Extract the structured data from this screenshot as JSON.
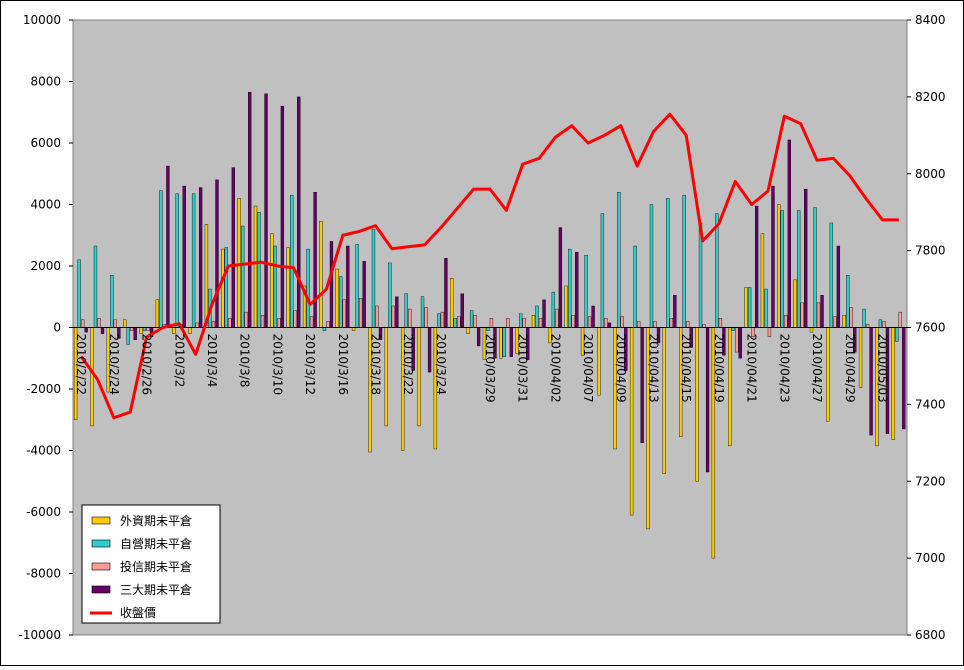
{
  "chart_data": {
    "type": "bar",
    "title": "",
    "xlabel": "",
    "ylabel": "",
    "y2label": "",
    "ylim": [
      -10000,
      10000
    ],
    "y2lim": [
      6800,
      8400
    ],
    "yticks": [
      "10000",
      "8000",
      "6000",
      "4000",
      "2000",
      "0",
      "-2000",
      "-4000",
      "-6000",
      "-8000",
      "-10000"
    ],
    "y2ticks": [
      "8400",
      "8200",
      "8000",
      "7800",
      "7600",
      "7400",
      "7200",
      "7000",
      "6800"
    ],
    "grid": false,
    "plot_background": "#c0c0c0",
    "legend_position": "bottom-left",
    "categories": [
      "2010/2/22",
      "2010/2/23",
      "2010/2/24",
      "2010/2/25",
      "2010/2/26",
      "2010/3/1",
      "2010/3/2",
      "2010/3/3",
      "2010/3/4",
      "2010/3/5",
      "2010/3/8",
      "2010/3/9",
      "2010/3/10",
      "2010/3/11",
      "2010/3/12",
      "2010/3/15",
      "2010/3/16",
      "2010/3/17",
      "2010/3/18",
      "2010/3/19",
      "2010/3/22",
      "2010/3/23",
      "2010/3/24",
      "2010/3/25",
      "2010/3/26",
      "2010/3/29",
      "2010/3/30",
      "2010/3/31",
      "2010/4/1",
      "2010/4/2",
      "2010/4/6",
      "2010/4/7",
      "2010/4/8",
      "2010/4/9",
      "2010/4/12",
      "2010/4/13",
      "2010/4/14",
      "2010/4/15",
      "2010/4/16",
      "2010/4/19",
      "2010/4/20",
      "2010/4/21",
      "2010/4/22",
      "2010/4/23",
      "2010/4/26",
      "2010/4/27",
      "2010/4/28",
      "2010/4/29",
      "2010/4/30",
      "2010/5/3",
      "2010/5/4"
    ],
    "x_tick_labels": [
      {
        "index": 0,
        "text": "2010/2/22"
      },
      {
        "index": 2,
        "text": "2010/2/24"
      },
      {
        "index": 4,
        "text": "2010/2/26"
      },
      {
        "index": 6,
        "text": "2010/3/2"
      },
      {
        "index": 8,
        "text": "2010/3/4"
      },
      {
        "index": 10,
        "text": "2010/3/8"
      },
      {
        "index": 12,
        "text": "2010/3/10"
      },
      {
        "index": 14,
        "text": "2010/3/12"
      },
      {
        "index": 16,
        "text": "2010/3/16"
      },
      {
        "index": 18,
        "text": "2010/3/18"
      },
      {
        "index": 20,
        "text": "2010/3/22"
      },
      {
        "index": 22,
        "text": "2010/3/24"
      },
      {
        "index": 25,
        "text": "2010/03/29"
      },
      {
        "index": 27,
        "text": "2010/03/31"
      },
      {
        "index": 29,
        "text": "2010/04/02"
      },
      {
        "index": 31,
        "text": "2010/04/07"
      },
      {
        "index": 33,
        "text": "2010/04/09"
      },
      {
        "index": 35,
        "text": "2010/04/13"
      },
      {
        "index": 37,
        "text": "2010/04/15"
      },
      {
        "index": 39,
        "text": "2010/04/19"
      },
      {
        "index": 41,
        "text": "2010/04/21"
      },
      {
        "index": 43,
        "text": "2010/04/23"
      },
      {
        "index": 45,
        "text": "2010/04/27"
      },
      {
        "index": 47,
        "text": "2010/04/29"
      },
      {
        "index": 49,
        "text": "2010/05/03"
      }
    ],
    "series": [
      {
        "name": "外資期未平倉",
        "type": "bar",
        "axis": "left",
        "color": "#ffcc00",
        "values": [
          -3000,
          -3200,
          -2100,
          250,
          -200,
          900,
          -200,
          -200,
          3350,
          2550,
          4200,
          3950,
          3050,
          2600,
          1350,
          3450,
          1900,
          -100,
          -4050,
          -3200,
          -4000,
          -3200,
          -3950,
          1600,
          -200,
          -1050,
          -1000,
          -850,
          400,
          -500,
          1350,
          -900,
          -2200,
          -3950,
          -6100,
          -6550,
          -4750,
          -3550,
          -5000,
          -7500,
          -3850,
          1300,
          3050,
          4000,
          1550,
          -150,
          -3050,
          400,
          -1950,
          -3850,
          -3650
        ]
      },
      {
        "name": "自營期未平倉",
        "type": "bar",
        "axis": "left",
        "color": "#33cccc",
        "values": [
          2200,
          2650,
          1700,
          -550,
          -100,
          4450,
          4350,
          4350,
          1250,
          2600,
          3300,
          3750,
          2650,
          4300,
          2550,
          -100,
          1650,
          2700,
          3200,
          2100,
          1100,
          1000,
          450,
          300,
          550,
          -100,
          -950,
          450,
          700,
          1150,
          2550,
          2350,
          3700,
          4400,
          2650,
          4000,
          4200,
          4300,
          3400,
          3700,
          -100,
          1300,
          1250,
          3800,
          3800,
          3900,
          3400,
          1700,
          600,
          250,
          -450
        ]
      },
      {
        "name": "投信期未平倉",
        "type": "bar",
        "axis": "left",
        "color": "#ff9999",
        "values": [
          250,
          300,
          250,
          -100,
          -100,
          100,
          100,
          150,
          200,
          300,
          500,
          400,
          300,
          550,
          350,
          200,
          900,
          950,
          700,
          700,
          600,
          650,
          500,
          350,
          400,
          300,
          300,
          300,
          300,
          600,
          400,
          350,
          300,
          350,
          200,
          200,
          300,
          200,
          100,
          300,
          -800,
          -300,
          -300,
          400,
          800,
          800,
          350,
          650,
          100,
          200,
          500
        ]
      },
      {
        "name": "三大期未平倉",
        "type": "bar",
        "axis": "left",
        "color": "#660066",
        "values": [
          -150,
          -200,
          -350,
          -400,
          -300,
          5250,
          4600,
          4550,
          4800,
          5200,
          7650,
          7600,
          7200,
          7500,
          4400,
          2800,
          2650,
          2150,
          -400,
          1000,
          -1400,
          -1450,
          2250,
          1100,
          -600,
          -1000,
          -950,
          -1050,
          900,
          3250,
          2450,
          700,
          150,
          -1400,
          -3750,
          -500,
          1050,
          -650,
          -4700,
          -900,
          -1000,
          3950,
          4600,
          6100,
          4500,
          1050,
          2650,
          -800,
          -3500,
          -3450,
          -3300
        ]
      },
      {
        "name": "收盤價",
        "type": "line",
        "axis": "right",
        "color": "#ff0000",
        "values": [
          7525,
          7465,
          7365,
          7380,
          7575,
          7600,
          7610,
          7530,
          7660,
          7760,
          7765,
          7770,
          7760,
          7755,
          7660,
          7700,
          7840,
          7850,
          7865,
          7805,
          7810,
          7815,
          7860,
          7910,
          7960,
          7960,
          7905,
          8025,
          8040,
          8095,
          8125,
          8080,
          8100,
          8125,
          8020,
          8110,
          8155,
          8100,
          7825,
          7870,
          7980,
          7920,
          7955,
          8150,
          8130,
          8035,
          8040,
          7995,
          7935,
          7880,
          7880
        ]
      }
    ]
  }
}
